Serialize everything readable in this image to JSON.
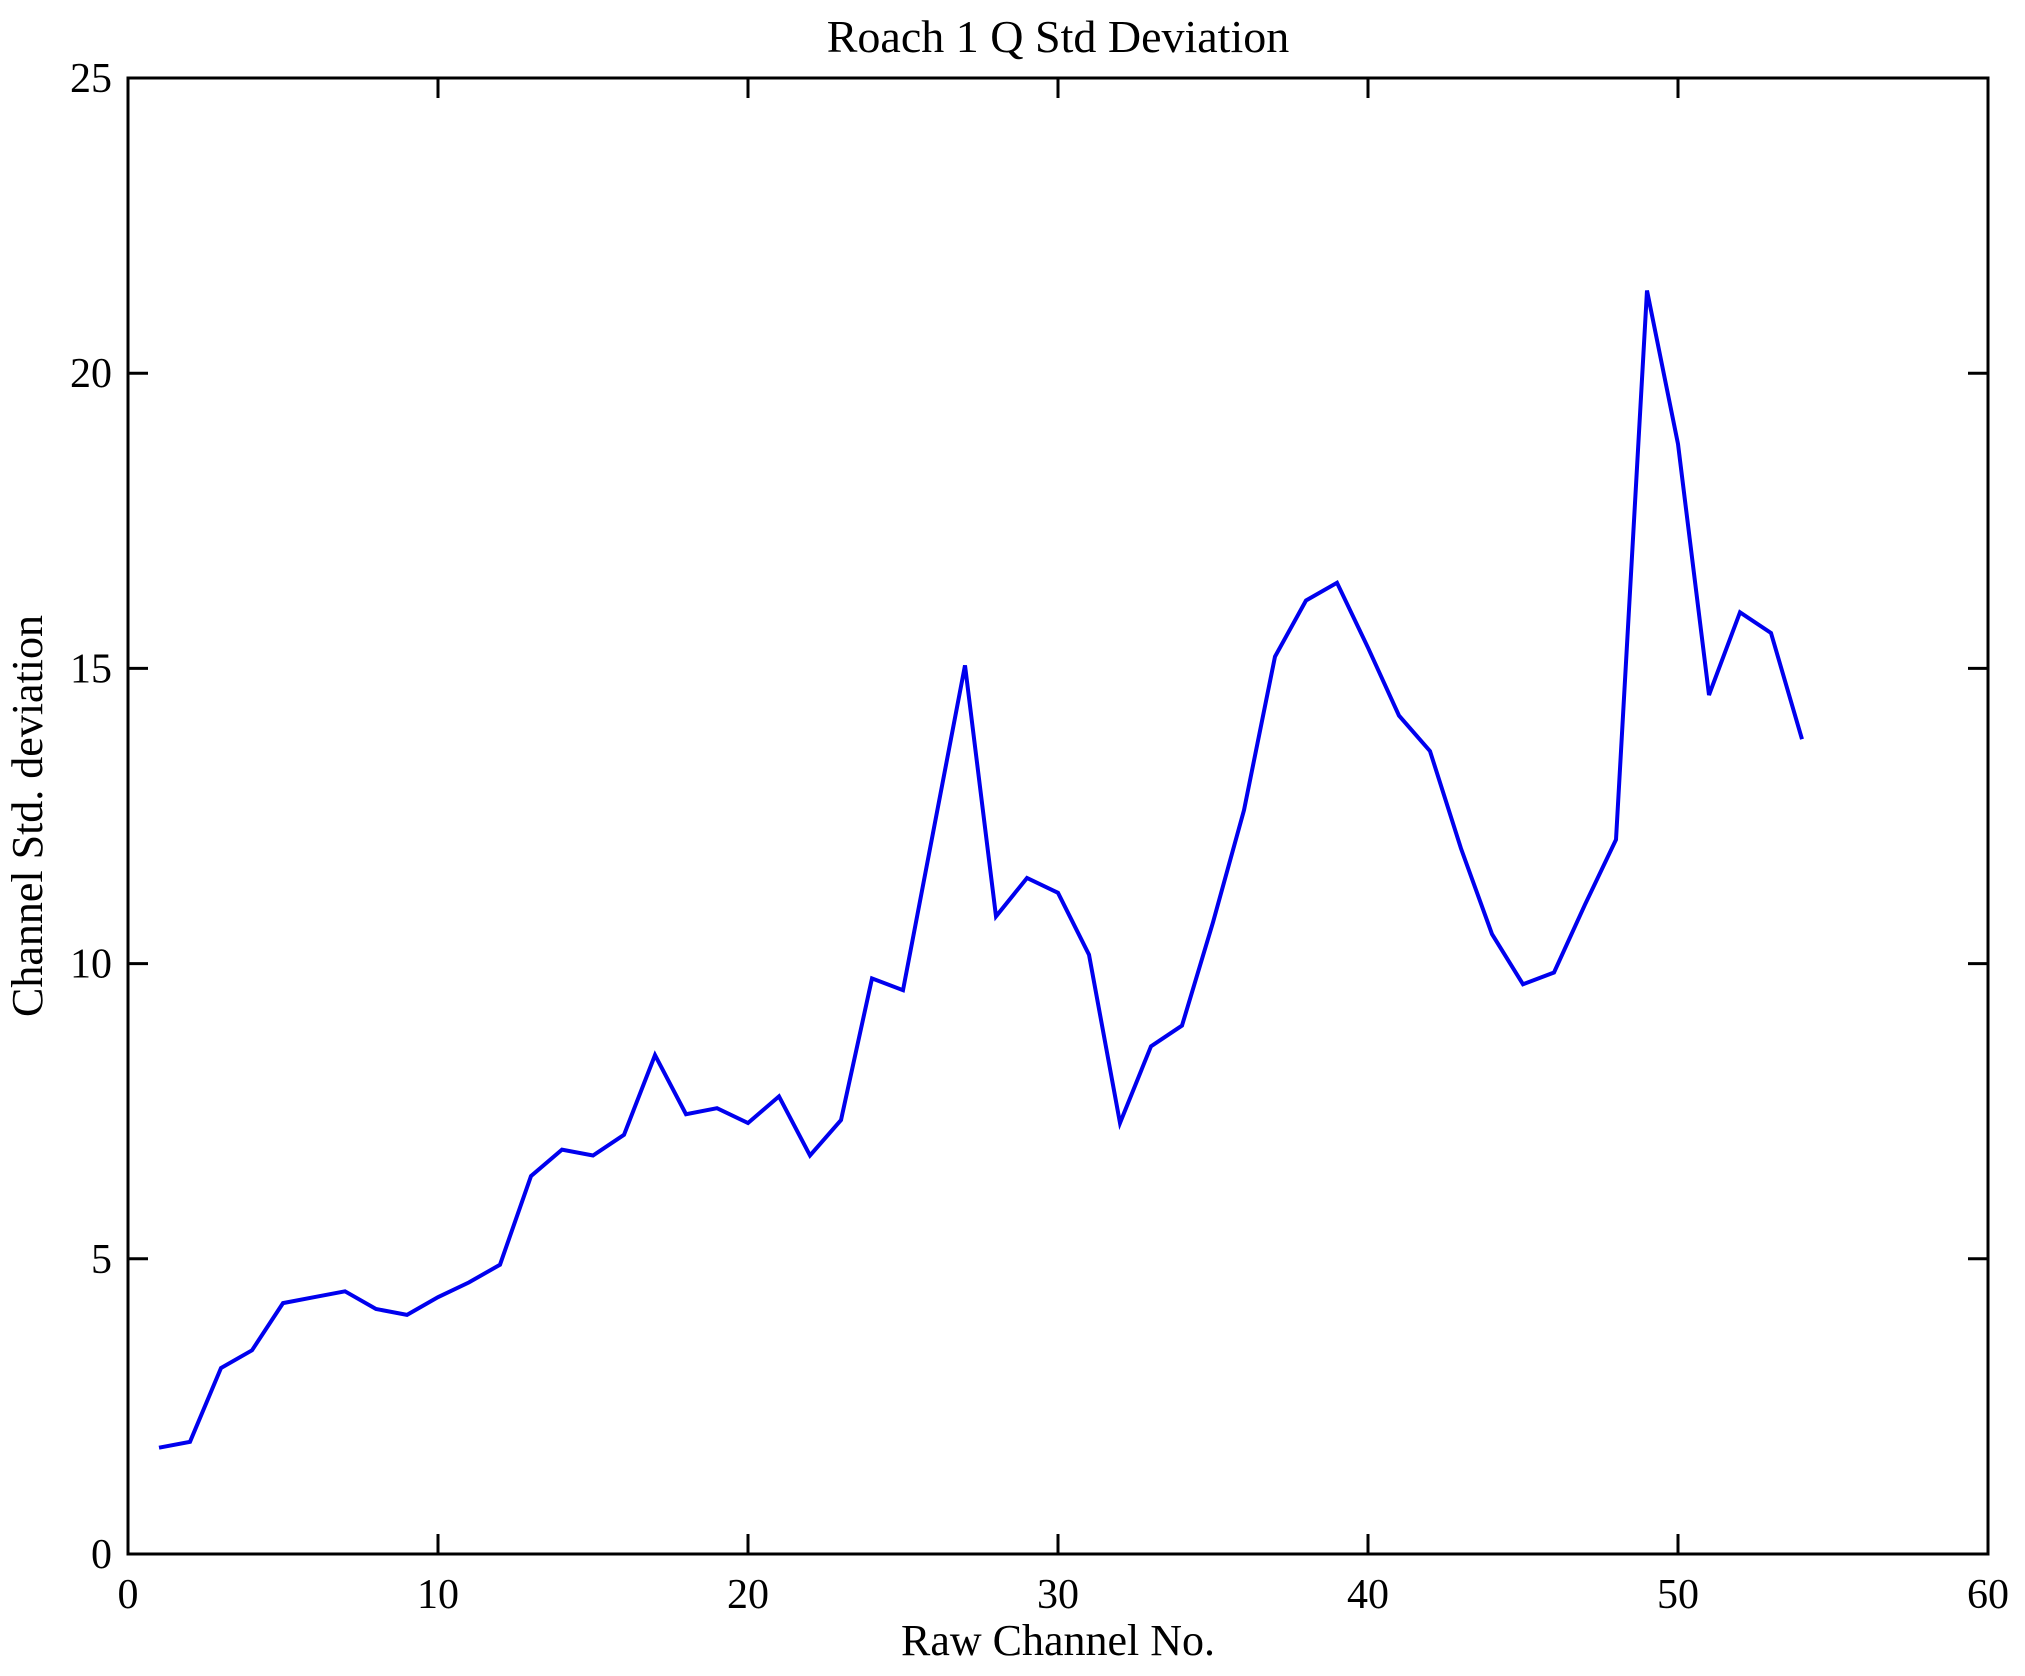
{
  "figure": {
    "title": "Roach 1 Q Std Deviation",
    "xlabel": "Raw Channel No.",
    "ylabel": "Channel Std. deviation"
  },
  "chart_data": {
    "type": "line",
    "title": "Roach 1 Q Std Deviation",
    "xlabel": "Raw Channel No.",
    "ylabel": "Channel Std. deviation",
    "xlim": [
      0,
      60
    ],
    "ylim": [
      0,
      25
    ],
    "xticks": [
      0,
      10,
      20,
      30,
      40,
      50,
      60
    ],
    "yticks": [
      0,
      5,
      10,
      15,
      20,
      25
    ],
    "grid": false,
    "legend_position": "none",
    "line_color": "#0000EE",
    "axis_color": "#000000",
    "background_color": "#FFFFFF",
    "series": [
      {
        "name": "Channel Std. deviation vs Raw Channel No.",
        "x": [
          1,
          2,
          3,
          4,
          5,
          6,
          7,
          8,
          9,
          10,
          11,
          12,
          13,
          14,
          15,
          16,
          17,
          18,
          19,
          20,
          21,
          22,
          23,
          24,
          25,
          26,
          27,
          28,
          29,
          30,
          31,
          32,
          33,
          34,
          35,
          36,
          37,
          38,
          39,
          40,
          41,
          42,
          43,
          44,
          45,
          46,
          47,
          48,
          49,
          50,
          51,
          52,
          53,
          54
        ],
        "y": [
          1.8,
          1.9,
          3.15,
          3.45,
          4.25,
          4.35,
          4.45,
          4.15,
          4.05,
          4.35,
          4.6,
          4.9,
          6.4,
          6.85,
          6.75,
          7.1,
          8.45,
          7.45,
          7.55,
          7.3,
          7.75,
          6.75,
          7.35,
          9.75,
          9.55,
          12.3,
          15.05,
          10.8,
          11.45,
          11.2,
          10.15,
          7.3,
          8.6,
          8.95,
          10.7,
          12.6,
          15.2,
          16.15,
          16.45,
          15.35,
          14.2,
          13.6,
          11.95,
          10.5,
          9.65,
          9.85,
          11.0,
          12.1,
          21.4,
          18.8,
          14.55,
          15.95,
          15.6,
          13.8
        ]
      }
    ]
  }
}
